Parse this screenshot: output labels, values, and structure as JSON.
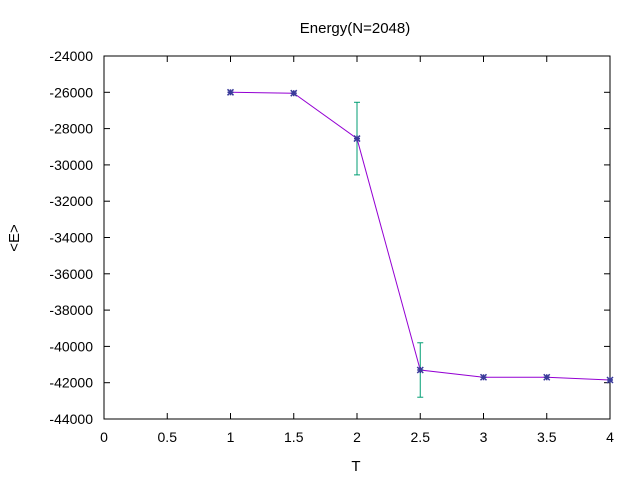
{
  "chart_data": {
    "type": "line",
    "title": "Energy(N=2048)",
    "xlabel": "T",
    "ylabel": "<E>",
    "xlim": [
      0,
      4
    ],
    "ylim": [
      -44000,
      -24000
    ],
    "x_ticks": [
      "0",
      "0.5",
      "1",
      "1.5",
      "2",
      "2.5",
      "3",
      "3.5",
      "4"
    ],
    "y_ticks": [
      "-24000",
      "-26000",
      "-28000",
      "-30000",
      "-32000",
      "-34000",
      "-36000",
      "-38000",
      "-40000",
      "-42000",
      "-44000"
    ],
    "grid": false,
    "series": [
      {
        "x": [
          1,
          1.5,
          2,
          2.5,
          3,
          3.5,
          4
        ],
        "y": [
          -26000,
          -26050,
          -28550,
          -41300,
          -41700,
          -41700,
          -41850
        ],
        "error": [
          0,
          0,
          2000,
          1500,
          0,
          0,
          0
        ]
      }
    ],
    "colors": {
      "line": "#9400d3",
      "marker": "#3a3a9a",
      "errorbar": "#009e73",
      "axis": "#000000"
    }
  }
}
